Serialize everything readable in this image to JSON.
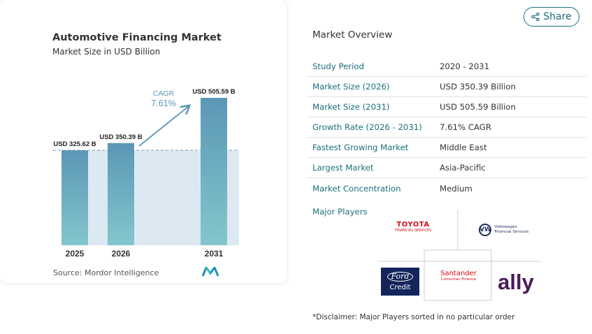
{
  "chart": {
    "title": "Automotive Financing Market",
    "subtitle": "Market Size in USD Billion",
    "source": "Source: Mordor Intelligence",
    "logo_text": "M"
  },
  "chart_data": {
    "type": "bar",
    "categories": [
      "2025",
      "2026",
      "2031"
    ],
    "values": [
      325.62,
      350.39,
      505.59
    ],
    "value_labels": [
      "USD 325.62 B",
      "USD 350.39 B",
      "USD 505.59 B"
    ],
    "annotation": {
      "label": "CAGR",
      "value": "7.61%"
    },
    "colors": {
      "bar_top": "#5b97b6",
      "bar_bottom": "#84c6cc",
      "band": "#dde9f2",
      "arrow": "#5b97b6",
      "annotation": "#5b97b6"
    }
  },
  "share": {
    "label": "Share",
    "icon": "share-icon"
  },
  "overview": {
    "title": "Market Overview",
    "rows": [
      {
        "key": "Study Period",
        "value": "2020 - 2031"
      },
      {
        "key": "Market Size (2026)",
        "value": "USD 350.39 Billion"
      },
      {
        "key": "Market Size (2031)",
        "value": "USD 505.59 Billion"
      },
      {
        "key": "Growth Rate (2026 - 2031)",
        "value": "7.61% CAGR"
      },
      {
        "key": "Fastest Growing Market",
        "value": "Middle East"
      },
      {
        "key": "Largest Market",
        "value": "Asia-Pacific"
      },
      {
        "key": "Market Concentration",
        "value": "Medium"
      }
    ],
    "players_label": "Major Players"
  },
  "players": {
    "toyota": {
      "line1": "TOYOTA",
      "line2": "FINANCIAL SERVICES"
    },
    "vw": {
      "badge": "VW",
      "line1": "Volkswagen",
      "line2": "Financial Services"
    },
    "ford": {
      "line1": "Ford",
      "line2": "Credit"
    },
    "santander": {
      "line1": "Santander",
      "line2": "Consumer Finance"
    },
    "ally": {
      "name": "ally"
    }
  },
  "disclaimer": "*Disclaimer: Major Players sorted in no particular order"
}
